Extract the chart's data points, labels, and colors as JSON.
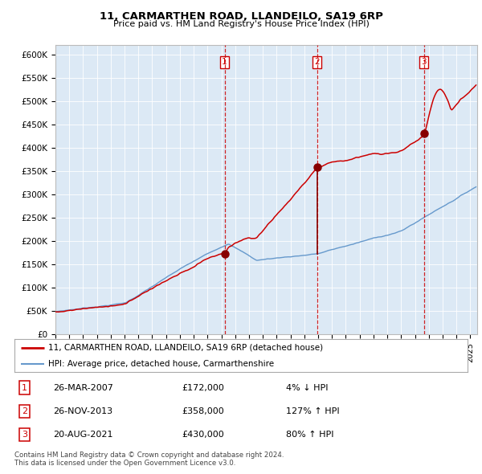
{
  "title": "11, CARMARTHEN ROAD, LLANDEILO, SA19 6RP",
  "subtitle": "Price paid vs. HM Land Registry's House Price Index (HPI)",
  "ylim": [
    0,
    620000
  ],
  "yticks": [
    0,
    50000,
    100000,
    150000,
    200000,
    250000,
    300000,
    350000,
    400000,
    450000,
    500000,
    550000,
    600000
  ],
  "ytick_labels": [
    "£0",
    "£50K",
    "£100K",
    "£150K",
    "£200K",
    "£250K",
    "£300K",
    "£350K",
    "£400K",
    "£450K",
    "£500K",
    "£550K",
    "£600K"
  ],
  "plot_bg_color": "#dce9f5",
  "hpi_line_color": "#6699cc",
  "price_line_color": "#cc0000",
  "sale_marker_color": "#880000",
  "vline_color": "#cc0000",
  "sale1_date": 2007.23,
  "sale1_price": 172000,
  "sale2_date": 2013.91,
  "sale2_price": 358000,
  "sale3_date": 2021.64,
  "sale3_price": 430000,
  "legend_line1": "11, CARMARTHEN ROAD, LLANDEILO, SA19 6RP (detached house)",
  "legend_line2": "HPI: Average price, detached house, Carmarthenshire",
  "table_rows": [
    {
      "num": "1",
      "date": "26-MAR-2007",
      "price": "£172,000",
      "change": "4% ↓ HPI"
    },
    {
      "num": "2",
      "date": "26-NOV-2013",
      "price": "£358,000",
      "change": "127% ↑ HPI"
    },
    {
      "num": "3",
      "date": "20-AUG-2021",
      "price": "£430,000",
      "change": "80% ↑ HPI"
    }
  ],
  "footer": "Contains HM Land Registry data © Crown copyright and database right 2024.\nThis data is licensed under the Open Government Licence v3.0.",
  "xmin": 1995,
  "xmax": 2025.5
}
